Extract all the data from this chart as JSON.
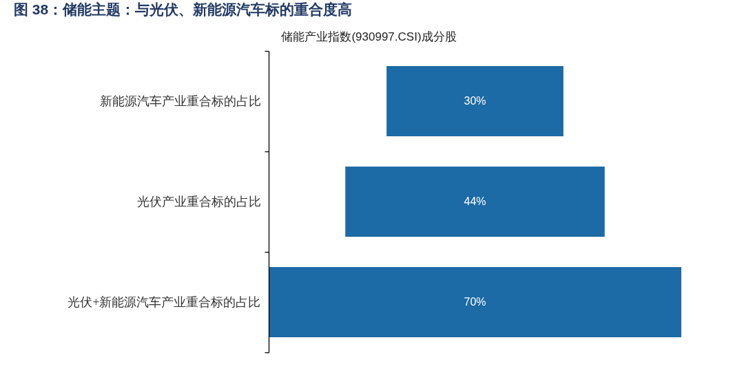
{
  "chart_data": {
    "type": "other",
    "title": "图 38：储能主题：与光伏、新能源汽车标的重合度高",
    "subtitle": "储能产业指数(930997.CSI)成分股",
    "categories": [
      "新能源汽车产业重合标的占比",
      "光伏产业重合标的占比",
      "光伏+新能源汽车产业重合标的占比"
    ],
    "values": [
      30,
      44,
      70
    ],
    "color": "#1c6aa6",
    "value_labels": [
      "30%",
      "44%",
      "70%"
    ]
  }
}
